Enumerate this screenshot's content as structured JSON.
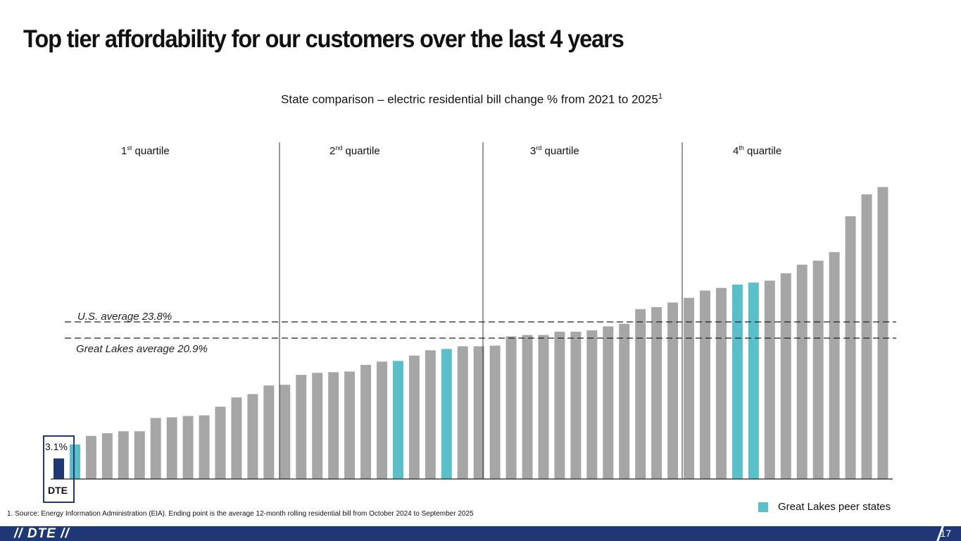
{
  "title": "Top tier affordability for our customers over the last 4 years",
  "chart_data": {
    "type": "bar",
    "title": "State comparison – electric residential bill change % from 2021 to 2025",
    "title_footnote_marker": "1",
    "quartiles": [
      {
        "num": "1",
        "sup": "st",
        "label": "quartile"
      },
      {
        "num": "2",
        "sup": "nd",
        "label": "quartile"
      },
      {
        "num": "3",
        "sup": "rd",
        "label": "quartile"
      },
      {
        "num": "4",
        "sup": "th",
        "label": "quartile"
      }
    ],
    "values": [
      3.1,
      5.2,
      6.5,
      6.9,
      7.2,
      7.2,
      9.2,
      9.3,
      9.5,
      9.6,
      10.9,
      12.3,
      12.8,
      14.1,
      14.2,
      15.7,
      16.0,
      16.1,
      16.2,
      17.2,
      17.7,
      17.8,
      18.6,
      19.4,
      19.6,
      20.0,
      20.0,
      20.1,
      21.5,
      21.7,
      21.7,
      22.2,
      22.2,
      22.4,
      23.0,
      23.4,
      25.6,
      25.9,
      26.6,
      27.3,
      28.4,
      28.8,
      29.3,
      29.6,
      29.9,
      31.0,
      32.3,
      32.9,
      34.2,
      39.6,
      42.9,
      44.0
    ],
    "kinds": [
      "dte",
      "peer",
      "other",
      "other",
      "other",
      "other",
      "other",
      "other",
      "other",
      "other",
      "other",
      "other",
      "other",
      "other",
      "other",
      "other",
      "other",
      "other",
      "other",
      "other",
      "other",
      "peer",
      "other",
      "other",
      "peer",
      "other",
      "other",
      "other",
      "other",
      "other",
      "other",
      "other",
      "other",
      "other",
      "other",
      "other",
      "other",
      "other",
      "other",
      "other",
      "other",
      "other",
      "peer",
      "peer",
      "other",
      "other",
      "other",
      "other",
      "other",
      "other",
      "other",
      "other"
    ],
    "dte_label": "DTE",
    "dte_value_label": "3.1%",
    "reference_lines": [
      {
        "label": "U.S. average 23.8%",
        "value": 23.8
      },
      {
        "label": "Great Lakes average 20.9%",
        "value": 20.9
      }
    ],
    "legend": [
      {
        "label": "Great Lakes peer states",
        "color": "#5bbfca"
      }
    ],
    "colors": {
      "dte": "#1f3774",
      "peer": "#5bbfca",
      "other": "#a6a6a6"
    },
    "ylim": [
      0,
      44.5
    ]
  },
  "footnote": "1.   Source: Energy Information Administration (EIA). Ending point is the average 12-month rolling residential bill from October 2024 to September 2025",
  "footer": {
    "logo": "DTE",
    "page": "17"
  }
}
